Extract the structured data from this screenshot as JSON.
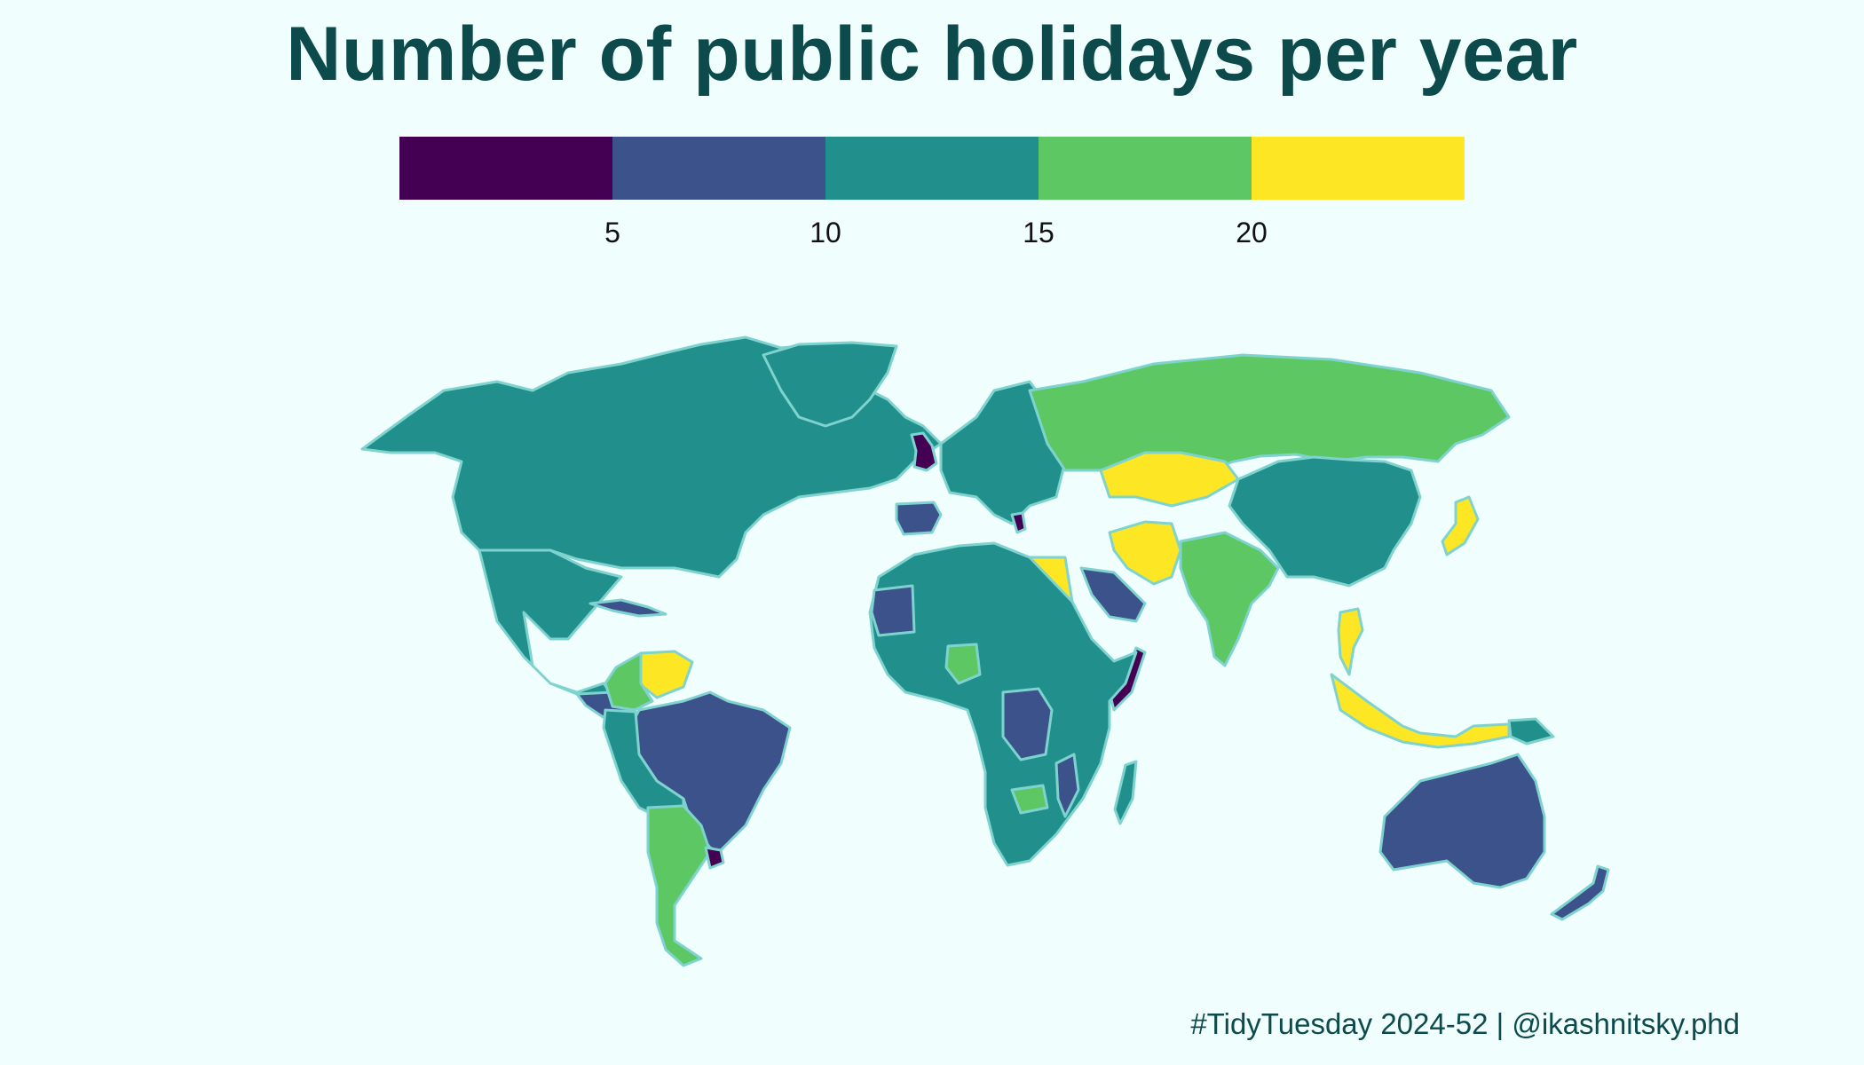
{
  "title": "Number of public holidays per year",
  "legend": {
    "bins": [
      {
        "range": "< 5",
        "color": "#440154"
      },
      {
        "range": "5-10",
        "color": "#3b528b"
      },
      {
        "range": "10-15",
        "color": "#21908c"
      },
      {
        "range": "15-20",
        "color": "#5dc863"
      },
      {
        "range": "> 20",
        "color": "#fde725"
      }
    ],
    "ticks": [
      "5",
      "10",
      "15",
      "20"
    ]
  },
  "credit": "#TidyTuesday 2024-52 | @ikashnitsky.phd",
  "regions": [
    {
      "name": "north-america",
      "bin": 2
    },
    {
      "name": "greenland",
      "bin": 2
    },
    {
      "name": "mexico",
      "bin": 2
    },
    {
      "name": "central-america",
      "bin": 1
    },
    {
      "name": "cuba",
      "bin": 1
    },
    {
      "name": "venezuela",
      "bin": 4
    },
    {
      "name": "colombia",
      "bin": 3
    },
    {
      "name": "brazil",
      "bin": 1
    },
    {
      "name": "andean-south-america",
      "bin": 2
    },
    {
      "name": "argentina-chile",
      "bin": 3
    },
    {
      "name": "uruguay",
      "bin": 0
    },
    {
      "name": "uk",
      "bin": 0
    },
    {
      "name": "iberia",
      "bin": 1
    },
    {
      "name": "france",
      "bin": 1
    },
    {
      "name": "europe",
      "bin": 2
    },
    {
      "name": "greece",
      "bin": 0
    },
    {
      "name": "russia",
      "bin": 3
    },
    {
      "name": "kazakhstan",
      "bin": 4
    },
    {
      "name": "iran",
      "bin": 4
    },
    {
      "name": "egypt",
      "bin": 4
    },
    {
      "name": "saudi-arabia",
      "bin": 1
    },
    {
      "name": "somalia",
      "bin": 0
    },
    {
      "name": "africa",
      "bin": 2
    },
    {
      "name": "west-africa-block",
      "bin": 1
    },
    {
      "name": "nigeria",
      "bin": 3
    },
    {
      "name": "dr-congo",
      "bin": 1
    },
    {
      "name": "zambia",
      "bin": 3
    },
    {
      "name": "mozambique",
      "bin": 1
    },
    {
      "name": "madagascar",
      "bin": 2
    },
    {
      "name": "india",
      "bin": 3
    },
    {
      "name": "china",
      "bin": 2
    },
    {
      "name": "japan",
      "bin": 4
    },
    {
      "name": "thailand",
      "bin": 4
    },
    {
      "name": "indonesia",
      "bin": 4
    },
    {
      "name": "png",
      "bin": 2
    },
    {
      "name": "australia",
      "bin": 1
    },
    {
      "name": "new-zealand",
      "bin": 1
    }
  ]
}
